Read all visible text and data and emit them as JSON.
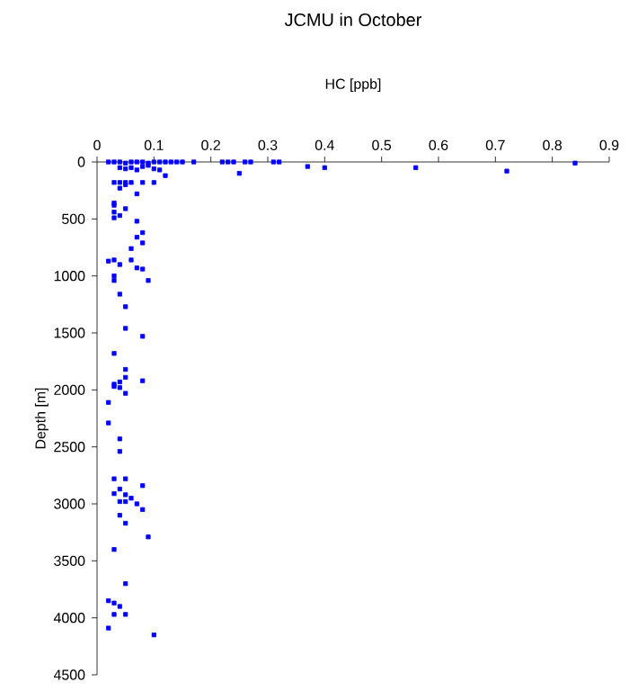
{
  "chart_data": {
    "type": "scatter",
    "title": "JCMU in October",
    "xlabel": "HC [ppb]",
    "ylabel": "Depth [m]",
    "xlim": [
      0,
      0.9
    ],
    "xticks": [
      0,
      0.1,
      0.2,
      0.3,
      0.4,
      0.5,
      0.6,
      0.7,
      0.8,
      0.9
    ],
    "ylim": [
      4500,
      0
    ],
    "yticks": [
      0,
      500,
      1000,
      1500,
      2000,
      2500,
      3000,
      3500,
      4000,
      4500
    ],
    "marker": "square",
    "series": [
      {
        "color": "#0000ff",
        "x": [
          0.02,
          0.03,
          0.04,
          0.05,
          0.06,
          0.07,
          0.08,
          0.09,
          0.1,
          0.11,
          0.12,
          0.13,
          0.14,
          0.15,
          0.17,
          0.22,
          0.23,
          0.24,
          0.26,
          0.27,
          0.31,
          0.32,
          0.37,
          0.4,
          0.56,
          0.72,
          0.84,
          0.25,
          0.11,
          0.12,
          0.04,
          0.05,
          0.06,
          0.07,
          0.08,
          0.09,
          0.1,
          0.03,
          0.04,
          0.05,
          0.06,
          0.08,
          0.1,
          0.04,
          0.05,
          0.07,
          0.03,
          0.03,
          0.05,
          0.03,
          0.04,
          0.03,
          0.07,
          0.08,
          0.07,
          0.08,
          0.06,
          0.06,
          0.02,
          0.03,
          0.04,
          0.07,
          0.08,
          0.03,
          0.03,
          0.09,
          0.04,
          0.05,
          0.05,
          0.08,
          0.03,
          0.05,
          0.05,
          0.08,
          0.03,
          0.04,
          0.04,
          0.03,
          0.05,
          0.02,
          0.02,
          0.04,
          0.04,
          0.03,
          0.05,
          0.08,
          0.04,
          0.03,
          0.05,
          0.06,
          0.04,
          0.05,
          0.07,
          0.08,
          0.04,
          0.05,
          0.09,
          0.03,
          0.05,
          0.02,
          0.03,
          0.04,
          0.03,
          0.05,
          0.02,
          0.1
        ],
        "values": [
          0,
          0,
          0,
          10,
          0,
          0,
          0,
          10,
          0,
          0,
          0,
          0,
          0,
          0,
          0,
          0,
          0,
          0,
          0,
          0,
          0,
          0,
          40,
          50,
          50,
          80,
          10,
          100,
          70,
          120,
          50,
          60,
          50,
          70,
          40,
          30,
          60,
          180,
          180,
          180,
          180,
          180,
          180,
          230,
          200,
          280,
          360,
          380,
          410,
          440,
          470,
          490,
          520,
          620,
          660,
          710,
          760,
          860,
          870,
          860,
          900,
          930,
          940,
          1000,
          1040,
          1040,
          1160,
          1270,
          1460,
          1530,
          1680,
          1820,
          1890,
          1920,
          1950,
          1930,
          1980,
          1970,
          2030,
          2110,
          2290,
          2430,
          2540,
          2780,
          2780,
          2840,
          2870,
          2910,
          2920,
          2950,
          2980,
          2980,
          3000,
          3050,
          3100,
          3170,
          3290,
          3400,
          3700,
          3850,
          3870,
          3900,
          3970,
          3970,
          4090,
          4150
        ]
      }
    ]
  }
}
